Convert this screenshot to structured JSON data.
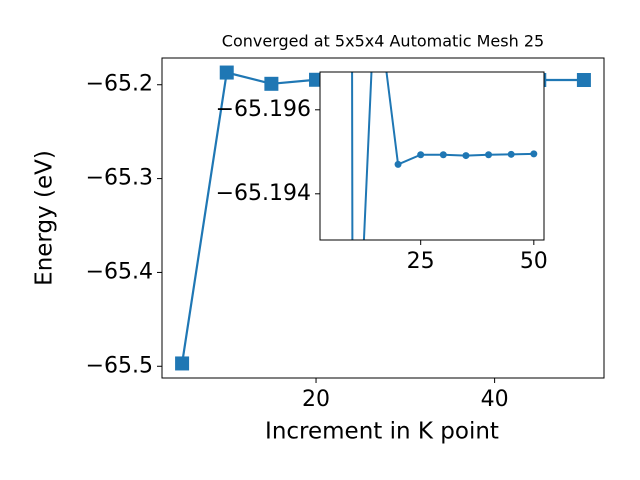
{
  "chart_data": {
    "type": "line",
    "title": "Converged at 5x5x4 Automatic Mesh 25",
    "xlabel": "Increment in K point",
    "ylabel": "Energy (eV)",
    "x": [
      5,
      10,
      15,
      20,
      25,
      30,
      35,
      40,
      45,
      50
    ],
    "series": [
      {
        "color": "#1f77b4",
        "values": [
          -65.497,
          -65.187,
          -65.199,
          -65.1947,
          -65.19493,
          -65.19493,
          -65.19491,
          -65.19493,
          -65.19494,
          -65.19495
        ]
      }
    ],
    "xlim": [
      2.75,
      52.25
    ],
    "ylim": [
      -65.5125,
      -65.1715
    ],
    "xticks": [
      20,
      40
    ],
    "yticks": [
      {
        "value": -65.2,
        "label": "−65.2"
      },
      {
        "value": -65.3,
        "label": "−65.3"
      },
      {
        "value": -65.4,
        "label": "−65.4"
      },
      {
        "value": -65.5,
        "label": "−65.5"
      }
    ],
    "inset": {
      "xlim": [
        2.75,
        52.25
      ],
      "ylim": [
        -65.1929,
        -65.1969
      ],
      "xticks": [
        25,
        50
      ],
      "yticks": [
        {
          "value": -65.196,
          "label": "−65.196"
        },
        {
          "value": -65.194,
          "label": "−65.194"
        }
      ]
    }
  }
}
